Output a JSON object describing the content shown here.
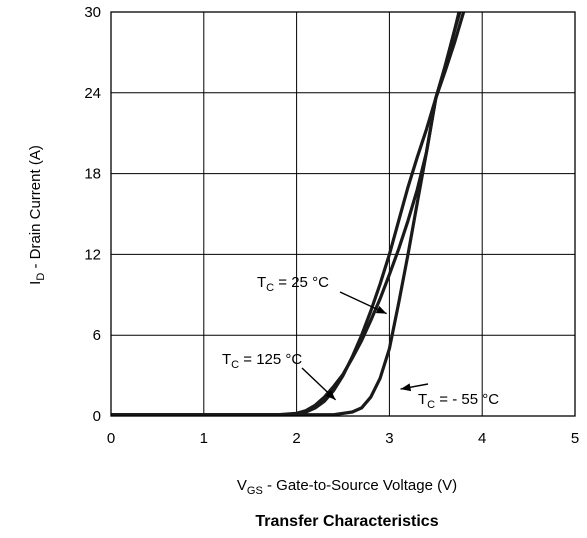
{
  "chart_data": {
    "type": "line",
    "title": "Transfer Characteristics",
    "xlabel": {
      "main": "V",
      "sub": "GS",
      "rest": " - Gate-to-Source Voltage (V)"
    },
    "ylabel": {
      "main": "I",
      "sub": "D",
      "rest": " - Drain Current (A)"
    },
    "xlim": [
      0,
      5
    ],
    "ylim": [
      0,
      30
    ],
    "x_ticks": [
      "0",
      "1",
      "2",
      "3",
      "4",
      "5"
    ],
    "y_ticks": [
      "0",
      "6",
      "12",
      "18",
      "24",
      "30"
    ],
    "grid": true,
    "series": [
      {
        "name": "T_C = 25 °C",
        "x": [
          0.0,
          0.5,
          1.0,
          1.5,
          1.9,
          2.0,
          2.1,
          2.2,
          2.3,
          2.4,
          2.5,
          2.6,
          2.7,
          2.8,
          2.9,
          3.0,
          3.1,
          3.2,
          3.3,
          3.4,
          3.5,
          3.6,
          3.7,
          3.75
        ],
        "y": [
          0.1,
          0.1,
          0.1,
          0.1,
          0.1,
          0.15,
          0.3,
          0.6,
          1.1,
          1.9,
          3.0,
          4.4,
          6.0,
          7.8,
          9.8,
          12.0,
          14.5,
          17.0,
          19.2,
          21.3,
          23.6,
          25.9,
          28.6,
          30.0
        ]
      },
      {
        "name": "T_C = 125 °C",
        "x": [
          0.0,
          0.5,
          1.0,
          1.5,
          1.8,
          2.0,
          2.1,
          2.2,
          2.3,
          2.4,
          2.5,
          2.6,
          2.7,
          2.8,
          2.9,
          3.0,
          3.1,
          3.2,
          3.3,
          3.4,
          3.5,
          3.6,
          3.7,
          3.8
        ],
        "y": [
          0.1,
          0.1,
          0.1,
          0.1,
          0.1,
          0.2,
          0.4,
          0.8,
          1.4,
          2.2,
          3.1,
          4.3,
          5.6,
          7.1,
          8.7,
          10.5,
          12.4,
          14.5,
          16.8,
          19.6,
          23.6,
          25.6,
          27.7,
          30.0
        ]
      },
      {
        "name": "T_C = - 55 °C",
        "x": [
          0.0,
          0.5,
          1.0,
          1.5,
          2.0,
          2.4,
          2.6,
          2.7,
          2.8,
          2.9,
          3.0,
          3.1,
          3.2,
          3.3,
          3.4,
          3.5,
          3.6,
          3.7,
          3.76
        ],
        "y": [
          0.1,
          0.1,
          0.1,
          0.1,
          0.1,
          0.1,
          0.3,
          0.6,
          1.4,
          2.8,
          5.0,
          8.4,
          12.0,
          15.8,
          19.6,
          23.6,
          26.0,
          28.6,
          30.0
        ]
      }
    ],
    "annotations": [
      {
        "main": "T",
        "sub": "C",
        "rest": " = 25 °C",
        "arrow_to": [
          2.97,
          7.6
        ]
      },
      {
        "main": "T",
        "sub": "C",
        "rest": " = 125 °C",
        "arrow_to": [
          2.42,
          1.2
        ]
      },
      {
        "main": "T",
        "sub": "C",
        "rest": " = - 55 °C",
        "arrow_to": [
          3.12,
          2.0
        ]
      }
    ],
    "line_color": "#1a1a1a",
    "grid_color": "#000000"
  }
}
